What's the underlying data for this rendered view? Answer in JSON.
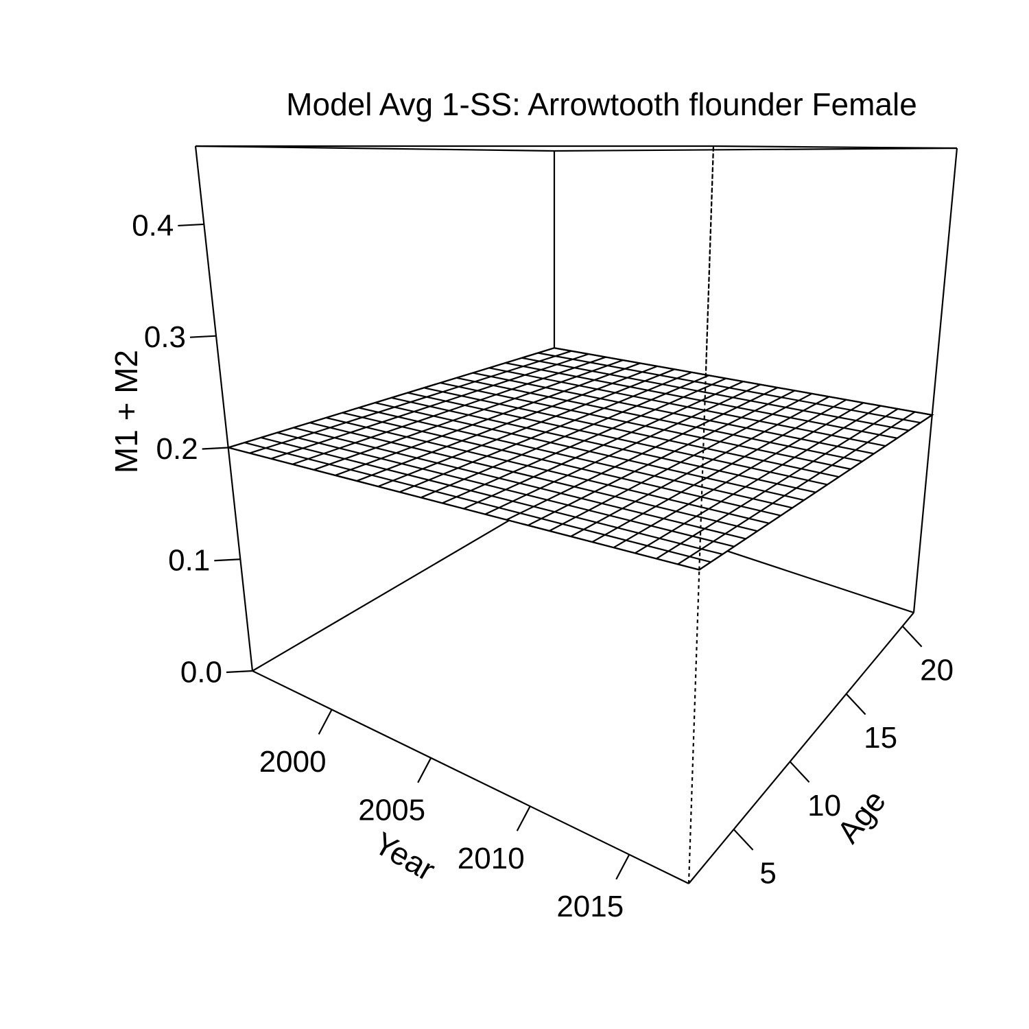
{
  "chart_data": {
    "type": "surface",
    "title": "Model Avg 1-SS: Arrowtooth flounder Female",
    "xlabel": "Year",
    "ylabel": "Age",
    "zlabel": "M1 + M2",
    "x_ticks": [
      2000,
      2005,
      2010,
      2015
    ],
    "y_ticks": [
      5,
      10,
      15,
      20
    ],
    "z_ticks": [
      "0.0",
      "0.1",
      "0.2",
      "0.3",
      "0.4"
    ],
    "xlim": [
      1996,
      2018
    ],
    "ylim": [
      1,
      21
    ],
    "zlim": [
      0,
      0.47
    ],
    "surface": {
      "years": [
        1996,
        1997,
        1998,
        1999,
        2000,
        2001,
        2002,
        2003,
        2004,
        2005,
        2006,
        2007,
        2008,
        2009,
        2010,
        2011,
        2012,
        2013,
        2014,
        2015,
        2016,
        2017,
        2018
      ],
      "ages": [
        1,
        2,
        3,
        4,
        5,
        6,
        7,
        8,
        9,
        10,
        11,
        12,
        13,
        14,
        15,
        16,
        17,
        18,
        19,
        20,
        21
      ],
      "value": 0.2
    },
    "grid": false,
    "box": true
  },
  "colors": {
    "line": "#000000",
    "surface": "#ffffff"
  }
}
